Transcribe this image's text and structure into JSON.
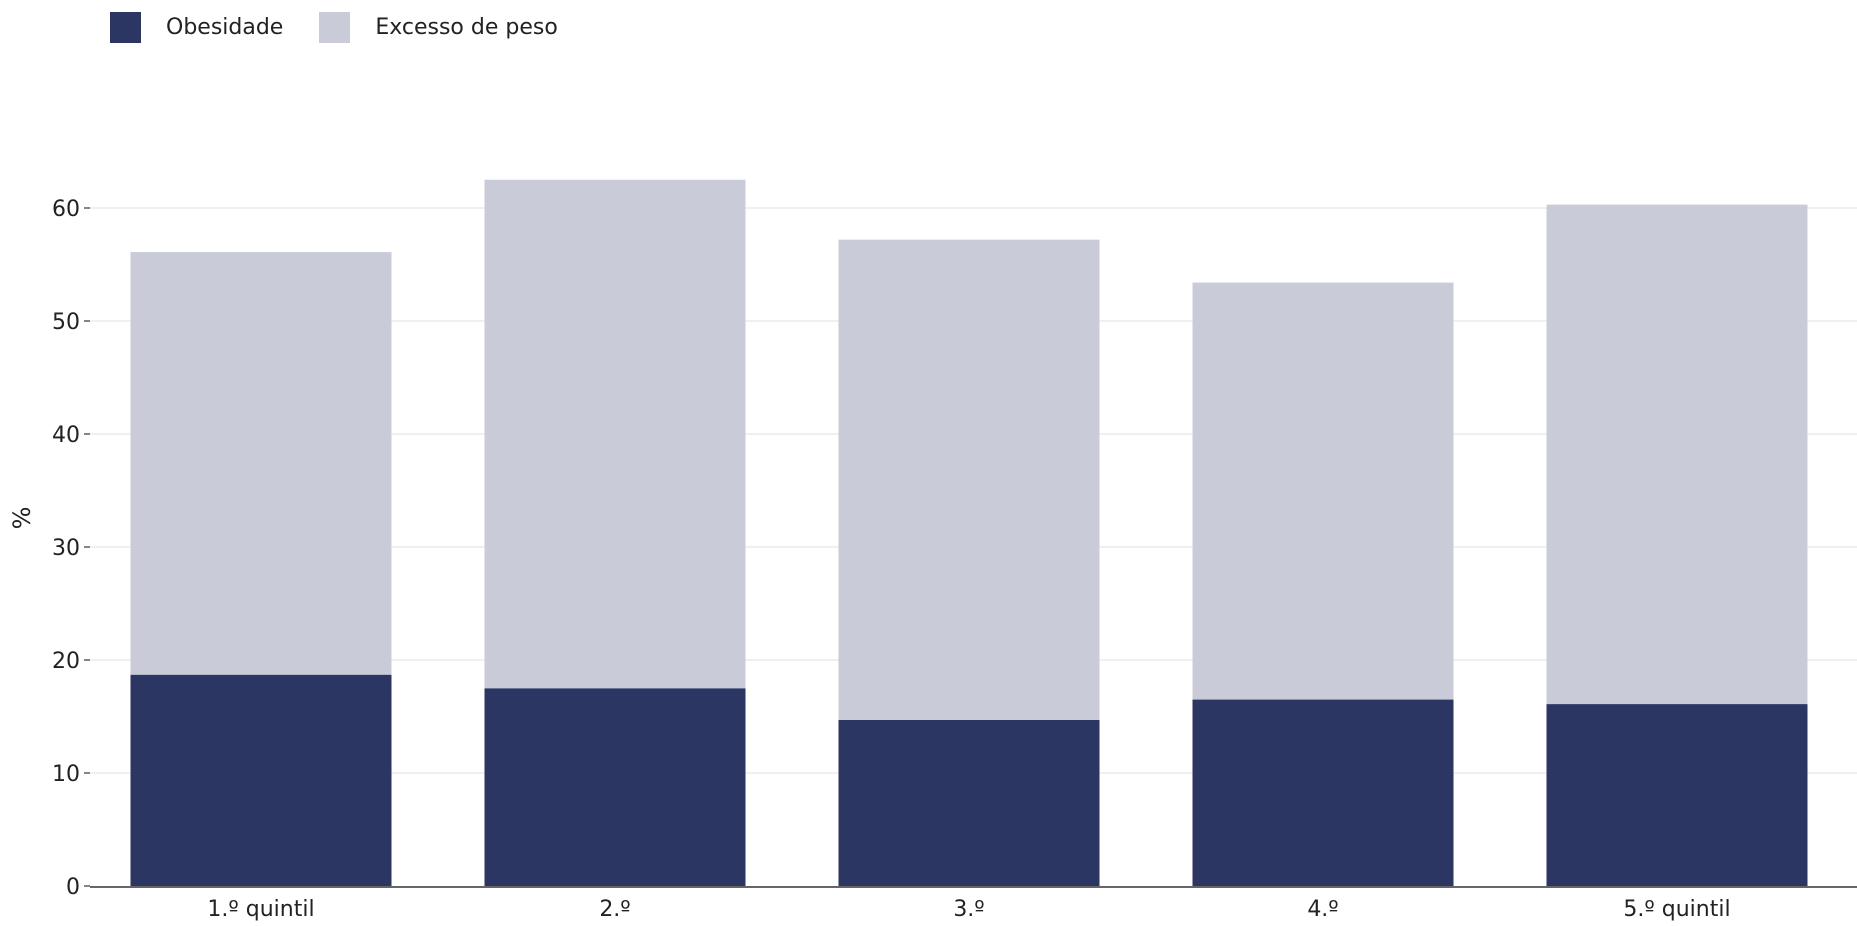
{
  "chart_data": {
    "type": "bar",
    "stacked": true,
    "categories": [
      "1.º quintil",
      "2.º",
      "3.º",
      "4.º",
      "5.º quintil"
    ],
    "series": [
      {
        "name": "Obesidade",
        "color": "#2b3663",
        "values": [
          18.7,
          17.5,
          14.7,
          16.5,
          16.1
        ]
      },
      {
        "name": "Excesso de peso",
        "color": "#c9ccd8",
        "values": [
          37.4,
          45.0,
          42.5,
          36.9,
          44.2
        ]
      }
    ],
    "ylabel": "%",
    "yticks": [
      0,
      10,
      20,
      30,
      40,
      50,
      60
    ],
    "ylim": [
      0,
      70
    ],
    "grid": true,
    "legend_position": "top-left"
  }
}
